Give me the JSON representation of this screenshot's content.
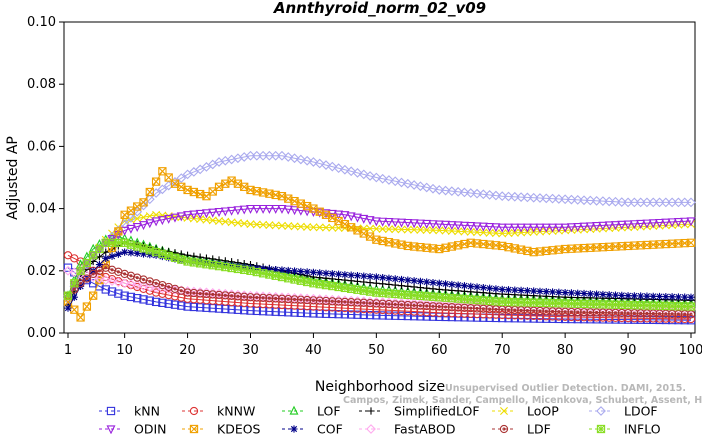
{
  "chart_data": {
    "type": "line",
    "title": "Annthyroid_norm_02_v09",
    "xlabel": "Neighborhood size",
    "ylabel": "Adjusted AP",
    "xlim": [
      1,
      100
    ],
    "ylim": [
      0,
      0.1
    ],
    "x_ticks": [
      1,
      10,
      20,
      30,
      40,
      50,
      60,
      70,
      80,
      90,
      100
    ],
    "y_ticks": [
      "0.00",
      "0.02",
      "0.04",
      "0.06",
      "0.08",
      "0.10"
    ],
    "grid": false,
    "legend_position": "bottom",
    "watermark_lines": [
      "Unsupervised Outlier Detection. DAMI, 2015.",
      "Campos, Zimek, Sander, Campello, Micenkova, Schubert, Assent, Houle"
    ],
    "series": [
      {
        "name": "kNN",
        "color": "#3333dd",
        "marker": "square",
        "x": [
          1,
          3,
          5,
          7,
          10,
          15,
          20,
          30,
          40,
          50,
          60,
          70,
          80,
          90,
          100
        ],
        "y": [
          0.021,
          0.018,
          0.016,
          0.014,
          0.012,
          0.01,
          0.0085,
          0.0072,
          0.0063,
          0.0057,
          0.0052,
          0.0048,
          0.0045,
          0.0043,
          0.0041
        ]
      },
      {
        "name": "kNNW",
        "color": "#dd3333",
        "marker": "circle",
        "x": [
          1,
          3,
          5,
          7,
          10,
          15,
          20,
          30,
          40,
          50,
          60,
          70,
          80,
          90,
          100
        ],
        "y": [
          0.025,
          0.023,
          0.02,
          0.018,
          0.016,
          0.013,
          0.011,
          0.0095,
          0.0085,
          0.0075,
          0.0065,
          0.0058,
          0.0052,
          0.0048,
          0.0045
        ]
      },
      {
        "name": "LOF",
        "color": "#22cc22",
        "marker": "triangle",
        "x": [
          1,
          3,
          5,
          7,
          9,
          12,
          15,
          20,
          30,
          40,
          50,
          60,
          70,
          80,
          90,
          100
        ],
        "y": [
          0.012,
          0.022,
          0.027,
          0.03,
          0.031,
          0.029,
          0.027,
          0.024,
          0.021,
          0.017,
          0.014,
          0.0125,
          0.011,
          0.0105,
          0.01,
          0.0095
        ]
      },
      {
        "name": "SimplifiedLOF",
        "color": "#000000",
        "marker": "plus",
        "x": [
          1,
          3,
          5,
          7,
          10,
          12,
          15,
          20,
          30,
          40,
          50,
          60,
          70,
          80,
          90,
          100
        ],
        "y": [
          0.009,
          0.018,
          0.023,
          0.026,
          0.029,
          0.0285,
          0.027,
          0.025,
          0.022,
          0.018,
          0.016,
          0.014,
          0.0125,
          0.0115,
          0.011,
          0.0105
        ]
      },
      {
        "name": "LoOP",
        "color": "#eedd00",
        "marker": "x",
        "x": [
          1,
          3,
          5,
          7,
          10,
          15,
          20,
          30,
          40,
          50,
          60,
          70,
          80,
          90,
          100
        ],
        "y": [
          0.011,
          0.02,
          0.025,
          0.03,
          0.036,
          0.038,
          0.037,
          0.035,
          0.034,
          0.0335,
          0.033,
          0.032,
          0.033,
          0.034,
          0.035
        ]
      },
      {
        "name": "LDOF",
        "color": "#aaaaee",
        "marker": "diamond",
        "x": [
          1,
          3,
          5,
          7,
          10,
          15,
          20,
          25,
          30,
          35,
          40,
          50,
          60,
          70,
          80,
          90,
          100
        ],
        "y": [
          0.011,
          0.019,
          0.025,
          0.029,
          0.035,
          0.045,
          0.051,
          0.055,
          0.057,
          0.057,
          0.055,
          0.05,
          0.046,
          0.044,
          0.043,
          0.042,
          0.042
        ]
      },
      {
        "name": "ODIN",
        "color": "#9922dd",
        "marker": "triangle-down",
        "x": [
          1,
          3,
          5,
          7,
          10,
          15,
          20,
          25,
          30,
          35,
          40,
          45,
          50,
          60,
          70,
          80,
          90,
          100
        ],
        "y": [
          0.011,
          0.02,
          0.025,
          0.029,
          0.033,
          0.036,
          0.038,
          0.039,
          0.04,
          0.04,
          0.039,
          0.038,
          0.036,
          0.035,
          0.034,
          0.034,
          0.035,
          0.036
        ]
      },
      {
        "name": "KDEOS",
        "color": "#f0a000",
        "marker": "square-x",
        "x": [
          1,
          3,
          5,
          7,
          10,
          13,
          16,
          18,
          20,
          23,
          25,
          27,
          30,
          35,
          40,
          45,
          50,
          55,
          60,
          65,
          70,
          75,
          80,
          90,
          100
        ],
        "y": [
          0.01,
          0.005,
          0.012,
          0.022,
          0.038,
          0.042,
          0.052,
          0.048,
          0.046,
          0.044,
          0.047,
          0.049,
          0.046,
          0.044,
          0.04,
          0.035,
          0.03,
          0.028,
          0.027,
          0.029,
          0.028,
          0.026,
          0.027,
          0.028,
          0.029
        ]
      },
      {
        "name": "COF",
        "color": "#000088",
        "marker": "star",
        "x": [
          1,
          3,
          5,
          7,
          10,
          15,
          20,
          30,
          40,
          50,
          60,
          70,
          80,
          90,
          100
        ],
        "y": [
          0.008,
          0.015,
          0.02,
          0.024,
          0.026,
          0.025,
          0.023,
          0.021,
          0.0195,
          0.018,
          0.016,
          0.014,
          0.013,
          0.012,
          0.0115
        ]
      },
      {
        "name": "FastABOD",
        "color": "#ffaaee",
        "marker": "diamond-filled",
        "x": [
          1,
          3,
          5,
          7,
          10,
          15,
          20,
          30,
          40,
          50,
          60,
          70,
          80,
          90,
          100
        ],
        "y": [
          0.02,
          0.019,
          0.018,
          0.017,
          0.016,
          0.0145,
          0.0135,
          0.012,
          0.011,
          0.01,
          0.0092,
          0.0087,
          0.0082,
          0.0079,
          0.0077
        ]
      },
      {
        "name": "LDF",
        "color": "#aa3333",
        "marker": "circle-dot",
        "x": [
          1,
          3,
          5,
          7,
          10,
          15,
          20,
          30,
          40,
          50,
          60,
          70,
          80,
          90,
          100
        ],
        "y": [
          0.012,
          0.016,
          0.019,
          0.021,
          0.019,
          0.016,
          0.013,
          0.0115,
          0.0105,
          0.0095,
          0.0085,
          0.0075,
          0.0068,
          0.0064,
          0.006
        ]
      },
      {
        "name": "INFLO",
        "color": "#88dd22",
        "marker": "square-star",
        "x": [
          1,
          3,
          5,
          7,
          10,
          15,
          20,
          30,
          40,
          50,
          60,
          70,
          80,
          90,
          100
        ],
        "y": [
          0.012,
          0.02,
          0.025,
          0.029,
          0.029,
          0.026,
          0.023,
          0.02,
          0.016,
          0.013,
          0.0115,
          0.01,
          0.0095,
          0.009,
          0.0085
        ]
      }
    ],
    "legend_rows": [
      [
        "kNN",
        "kNNW",
        "LOF",
        "SimplifiedLOF",
        "LoOP",
        "LDOF"
      ],
      [
        "ODIN",
        "KDEOS",
        "COF",
        "FastABOD",
        "LDF",
        "INFLO"
      ]
    ]
  }
}
